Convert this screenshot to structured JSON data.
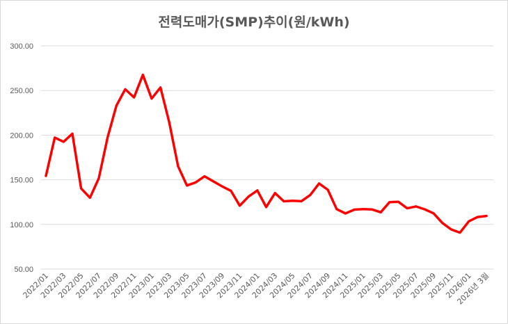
{
  "chart_data": {
    "type": "line",
    "title": "전력도매가(SMP)추이(원/kWh)",
    "xlabel": "",
    "ylabel": "",
    "ylim": [
      50,
      300
    ],
    "yticks": [
      "50.00",
      "100.00",
      "150.00",
      "200.00",
      "250.00",
      "300.00"
    ],
    "grid": true,
    "legend": "none",
    "line_color": "#ff0000",
    "categories": [
      "2022/01",
      "2022/02",
      "2022/03",
      "2022/04",
      "2022/05",
      "2022/06",
      "2022/07",
      "2022/08",
      "2022/09",
      "2022/10",
      "2022/11",
      "2022/12",
      "2023/01",
      "2023/02",
      "2023/03",
      "2023/04",
      "2023/05",
      "2023/06",
      "2023/07",
      "2023/08",
      "2023/09",
      "2023/10",
      "2023/11",
      "2023/12",
      "2024/01",
      "2024/02",
      "2024/03",
      "2024/04",
      "2024/05",
      "2024/06",
      "2024/07",
      "2024/08",
      "2024/09",
      "2024/10",
      "2024/11",
      "2024/12",
      "2025/01",
      "2025/02",
      "2025/03",
      "2025/04",
      "2025/05",
      "2025/06",
      "2025/07",
      "2025/08",
      "2025/09",
      "2025/10",
      "2025/11",
      "2025/12",
      "2026/01",
      "2026/02",
      "2026년 3월"
    ],
    "tick_labels": [
      "2022/01",
      "2022/03",
      "2022/05",
      "2022/07",
      "2022/09",
      "2022/11",
      "2023/01",
      "2023/03",
      "2023/05",
      "2023/07",
      "2023/09",
      "2023/11",
      "2024/01",
      "2024/03",
      "2024/05",
      "2024/07",
      "2024/09",
      "2024/11",
      "2025/01",
      "2025/03",
      "2025/05",
      "2025/07",
      "2025/09",
      "2025/11",
      "2026/01",
      "2026년 3월"
    ],
    "series": [
      {
        "name": "SMP",
        "values": [
          154.4,
          197.3,
          192.6,
          201.6,
          140.3,
          129.9,
          151.8,
          197.4,
          233.1,
          251.4,
          242.3,
          267.6,
          241.0,
          253.4,
          214.3,
          165.1,
          143.6,
          147.1,
          153.9,
          148.3,
          142.6,
          137.6,
          121.0,
          131.2,
          138.1,
          119.5,
          135.1,
          125.9,
          126.5,
          126.0,
          133.0,
          145.9,
          138.8,
          117.1,
          112.3,
          116.6,
          117.1,
          116.8,
          113.6,
          124.9,
          125.4,
          118.1,
          120.2,
          116.9,
          112.5,
          101.6,
          94.4,
          90.8,
          103.5,
          108.3,
          109.5
        ]
      }
    ]
  }
}
